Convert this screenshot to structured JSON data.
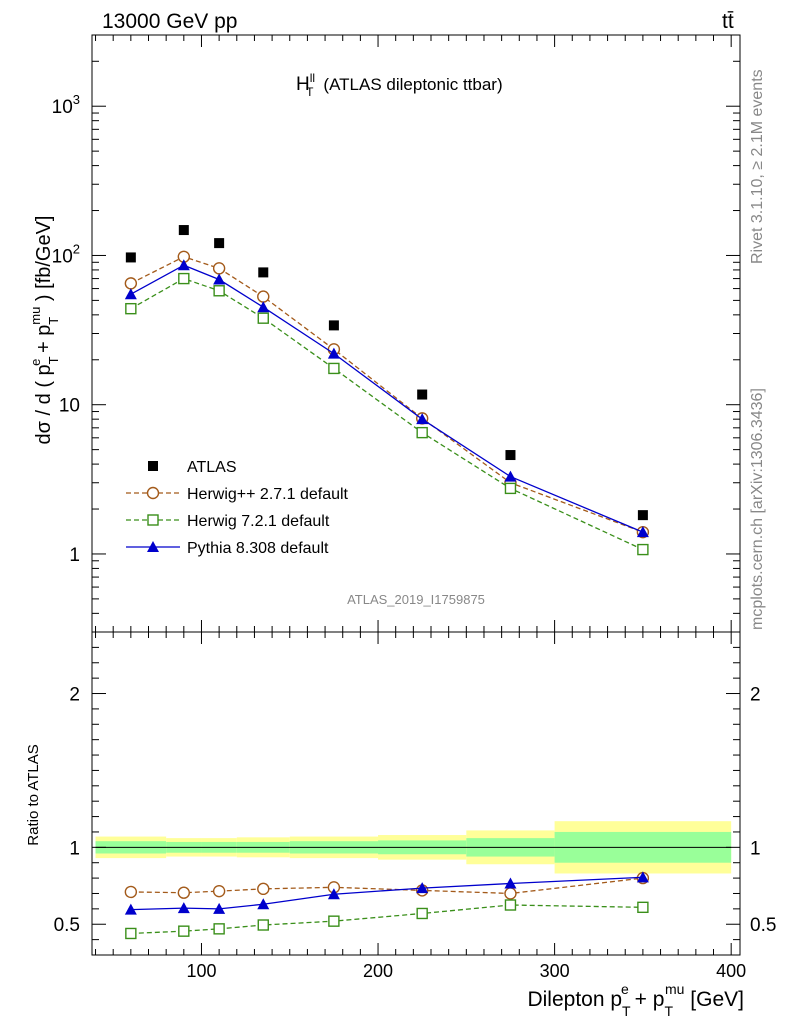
{
  "header": {
    "left": "13000 GeV pp",
    "right": "tt̄"
  },
  "side_text": {
    "rivet": "Rivet 3.1.10, ≥ 2.1M events",
    "mcplots": "mcplots.cern.ch [arXiv:1306.3436]"
  },
  "chart_data": [
    {
      "type": "scatter",
      "panel": "main",
      "title": "H_T^ll (ATLAS dileptonic ttbar)",
      "title_parts": {
        "main": "H",
        "sup": "ll",
        "sub": "T",
        "rest": "(ATLAS dileptonic ttbar)"
      },
      "ylabel": "dσ / d ( p_T^e + p_T^mu ) [fb/GeV]",
      "yscale": "log",
      "ylim": [
        0.3,
        3000
      ],
      "xlim": [
        38,
        405
      ],
      "ytick_labels": [
        "1",
        "10",
        "10^2",
        "10^3"
      ],
      "watermark": "ATLAS_2019_I1759875",
      "legend_position": "bottom-left",
      "x": [
        60,
        90,
        110,
        135,
        175,
        225,
        275,
        350
      ],
      "series": [
        {
          "name": "ATLAS",
          "marker": "filled-square",
          "color": "#000000",
          "line": "none",
          "values": [
            97,
            148,
            121,
            77,
            34,
            11.7,
            4.6,
            1.82
          ]
        },
        {
          "name": "Herwig++ 2.7.1 default",
          "marker": "open-circle",
          "color": "#a35a1a",
          "line": "dashed",
          "values": [
            65,
            98,
            82,
            53,
            23.5,
            8.1,
            3.0,
            1.4
          ]
        },
        {
          "name": "Herwig 7.2.1 default",
          "marker": "open-square",
          "color": "#3a8f1a",
          "line": "dashed",
          "values": [
            44,
            70,
            58,
            38,
            17.5,
            6.5,
            2.75,
            1.07
          ]
        },
        {
          "name": "Pythia 8.308 default",
          "marker": "filled-triangle",
          "color": "#0000cc",
          "line": "solid",
          "values": [
            55,
            86,
            69,
            45,
            22,
            8.0,
            3.3,
            1.4
          ]
        }
      ]
    },
    {
      "type": "line",
      "panel": "ratio",
      "ylabel": "Ratio to ATLAS",
      "xlabel": "Dilepton p_T^e + p_T^mu [GeV]",
      "xlabel_parts": {
        "pre": "Dilepton p",
        "sup1": "e",
        "sub1": "T",
        "mid": " + p",
        "sup2": "mu",
        "sub2": "T",
        "post": " [GeV]"
      },
      "ylim": [
        0.3,
        2.4
      ],
      "xlim": [
        38,
        405
      ],
      "xtick_labels": [
        "100",
        "200",
        "300",
        "400"
      ],
      "ytick_labels": [
        "0.5",
        "1",
        "2"
      ],
      "reference": 1.0,
      "bands": {
        "edges": [
          40,
          80,
          100,
          120,
          150,
          200,
          250,
          300,
          400
        ],
        "inner": [
          0.04,
          0.035,
          0.035,
          0.035,
          0.04,
          0.045,
          0.06,
          0.1
        ],
        "outer": [
          0.07,
          0.06,
          0.06,
          0.065,
          0.07,
          0.08,
          0.11,
          0.17
        ],
        "inner_color": "#99ff99",
        "outer_color": "#ffff99"
      },
      "x": [
        60,
        90,
        110,
        135,
        175,
        225,
        275,
        350
      ],
      "series": [
        {
          "name": "Herwig++ 2.7.1 default",
          "marker": "open-circle",
          "color": "#a35a1a",
          "line": "dashed",
          "values": [
            0.71,
            0.705,
            0.715,
            0.73,
            0.74,
            0.72,
            0.7,
            0.8
          ]
        },
        {
          "name": "Herwig 7.2.1 default",
          "marker": "open-square",
          "color": "#3a8f1a",
          "line": "dashed",
          "values": [
            0.44,
            0.455,
            0.47,
            0.495,
            0.52,
            0.57,
            0.625,
            0.61
          ]
        },
        {
          "name": "Pythia 8.308 default",
          "marker": "filled-triangle",
          "color": "#0000cc",
          "line": "solid",
          "values": [
            0.595,
            0.605,
            0.6,
            0.63,
            0.695,
            0.735,
            0.765,
            0.805
          ]
        }
      ]
    }
  ]
}
